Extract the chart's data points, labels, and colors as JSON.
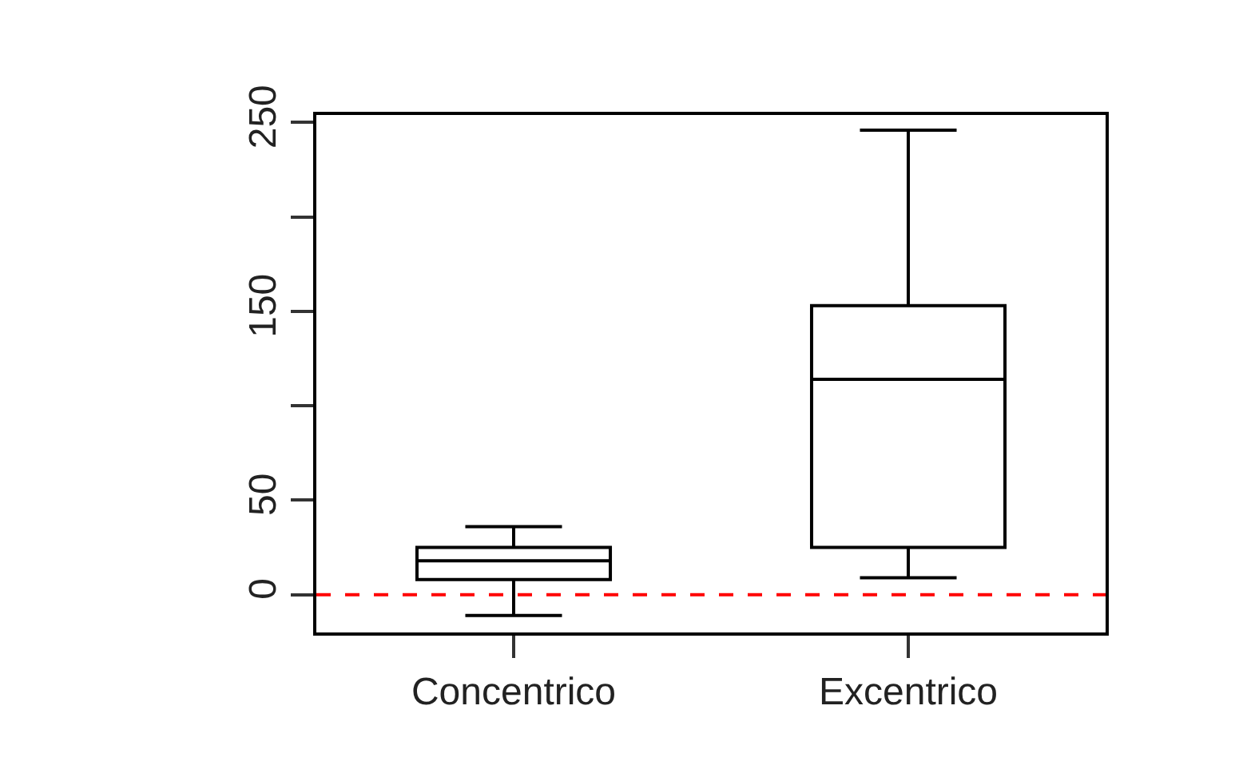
{
  "chart_data": {
    "type": "box",
    "categories": [
      "Concentrico",
      "Excentrico"
    ],
    "boxes": [
      {
        "low": -11,
        "q1": 8,
        "median": 18,
        "q3": 25,
        "high": 36
      },
      {
        "low": 9,
        "q1": 25,
        "median": 114,
        "q3": 153,
        "high": 246
      }
    ],
    "color": "#000000",
    "ylim": [
      -20,
      254
    ],
    "yticks": [
      0,
      50,
      {
        "value": 100,
        "label": null
      },
      150,
      {
        "value": 200,
        "label": null
      },
      250
    ],
    "grid": false,
    "ref_lines": [
      {
        "axis": "y",
        "value": 0,
        "color": "#ff0000",
        "line_style": "dashed"
      }
    ]
  }
}
